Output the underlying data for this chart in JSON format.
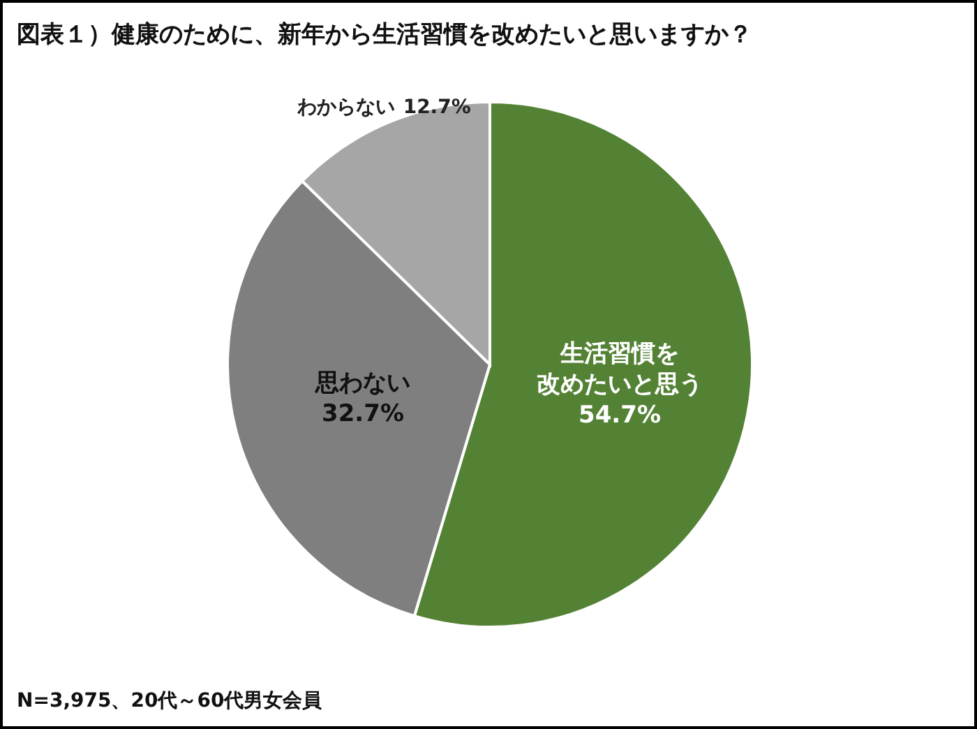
{
  "chart_data": {
    "type": "pie",
    "title": "図表１）健康のために、新年から生活習慣を改めたいと思いますか？",
    "categories": [
      "生活習慣を改めたいと思う",
      "思わない",
      "わからない"
    ],
    "values": [
      54.7,
      32.7,
      12.7
    ],
    "value_labels": [
      "54.7%",
      "32.7%",
      "12.7%"
    ],
    "colors": [
      "#548235",
      "#7f7f7f",
      "#a6a6a6"
    ],
    "annotations": [
      "N=3,975、20代～60代男女会員"
    ]
  }
}
